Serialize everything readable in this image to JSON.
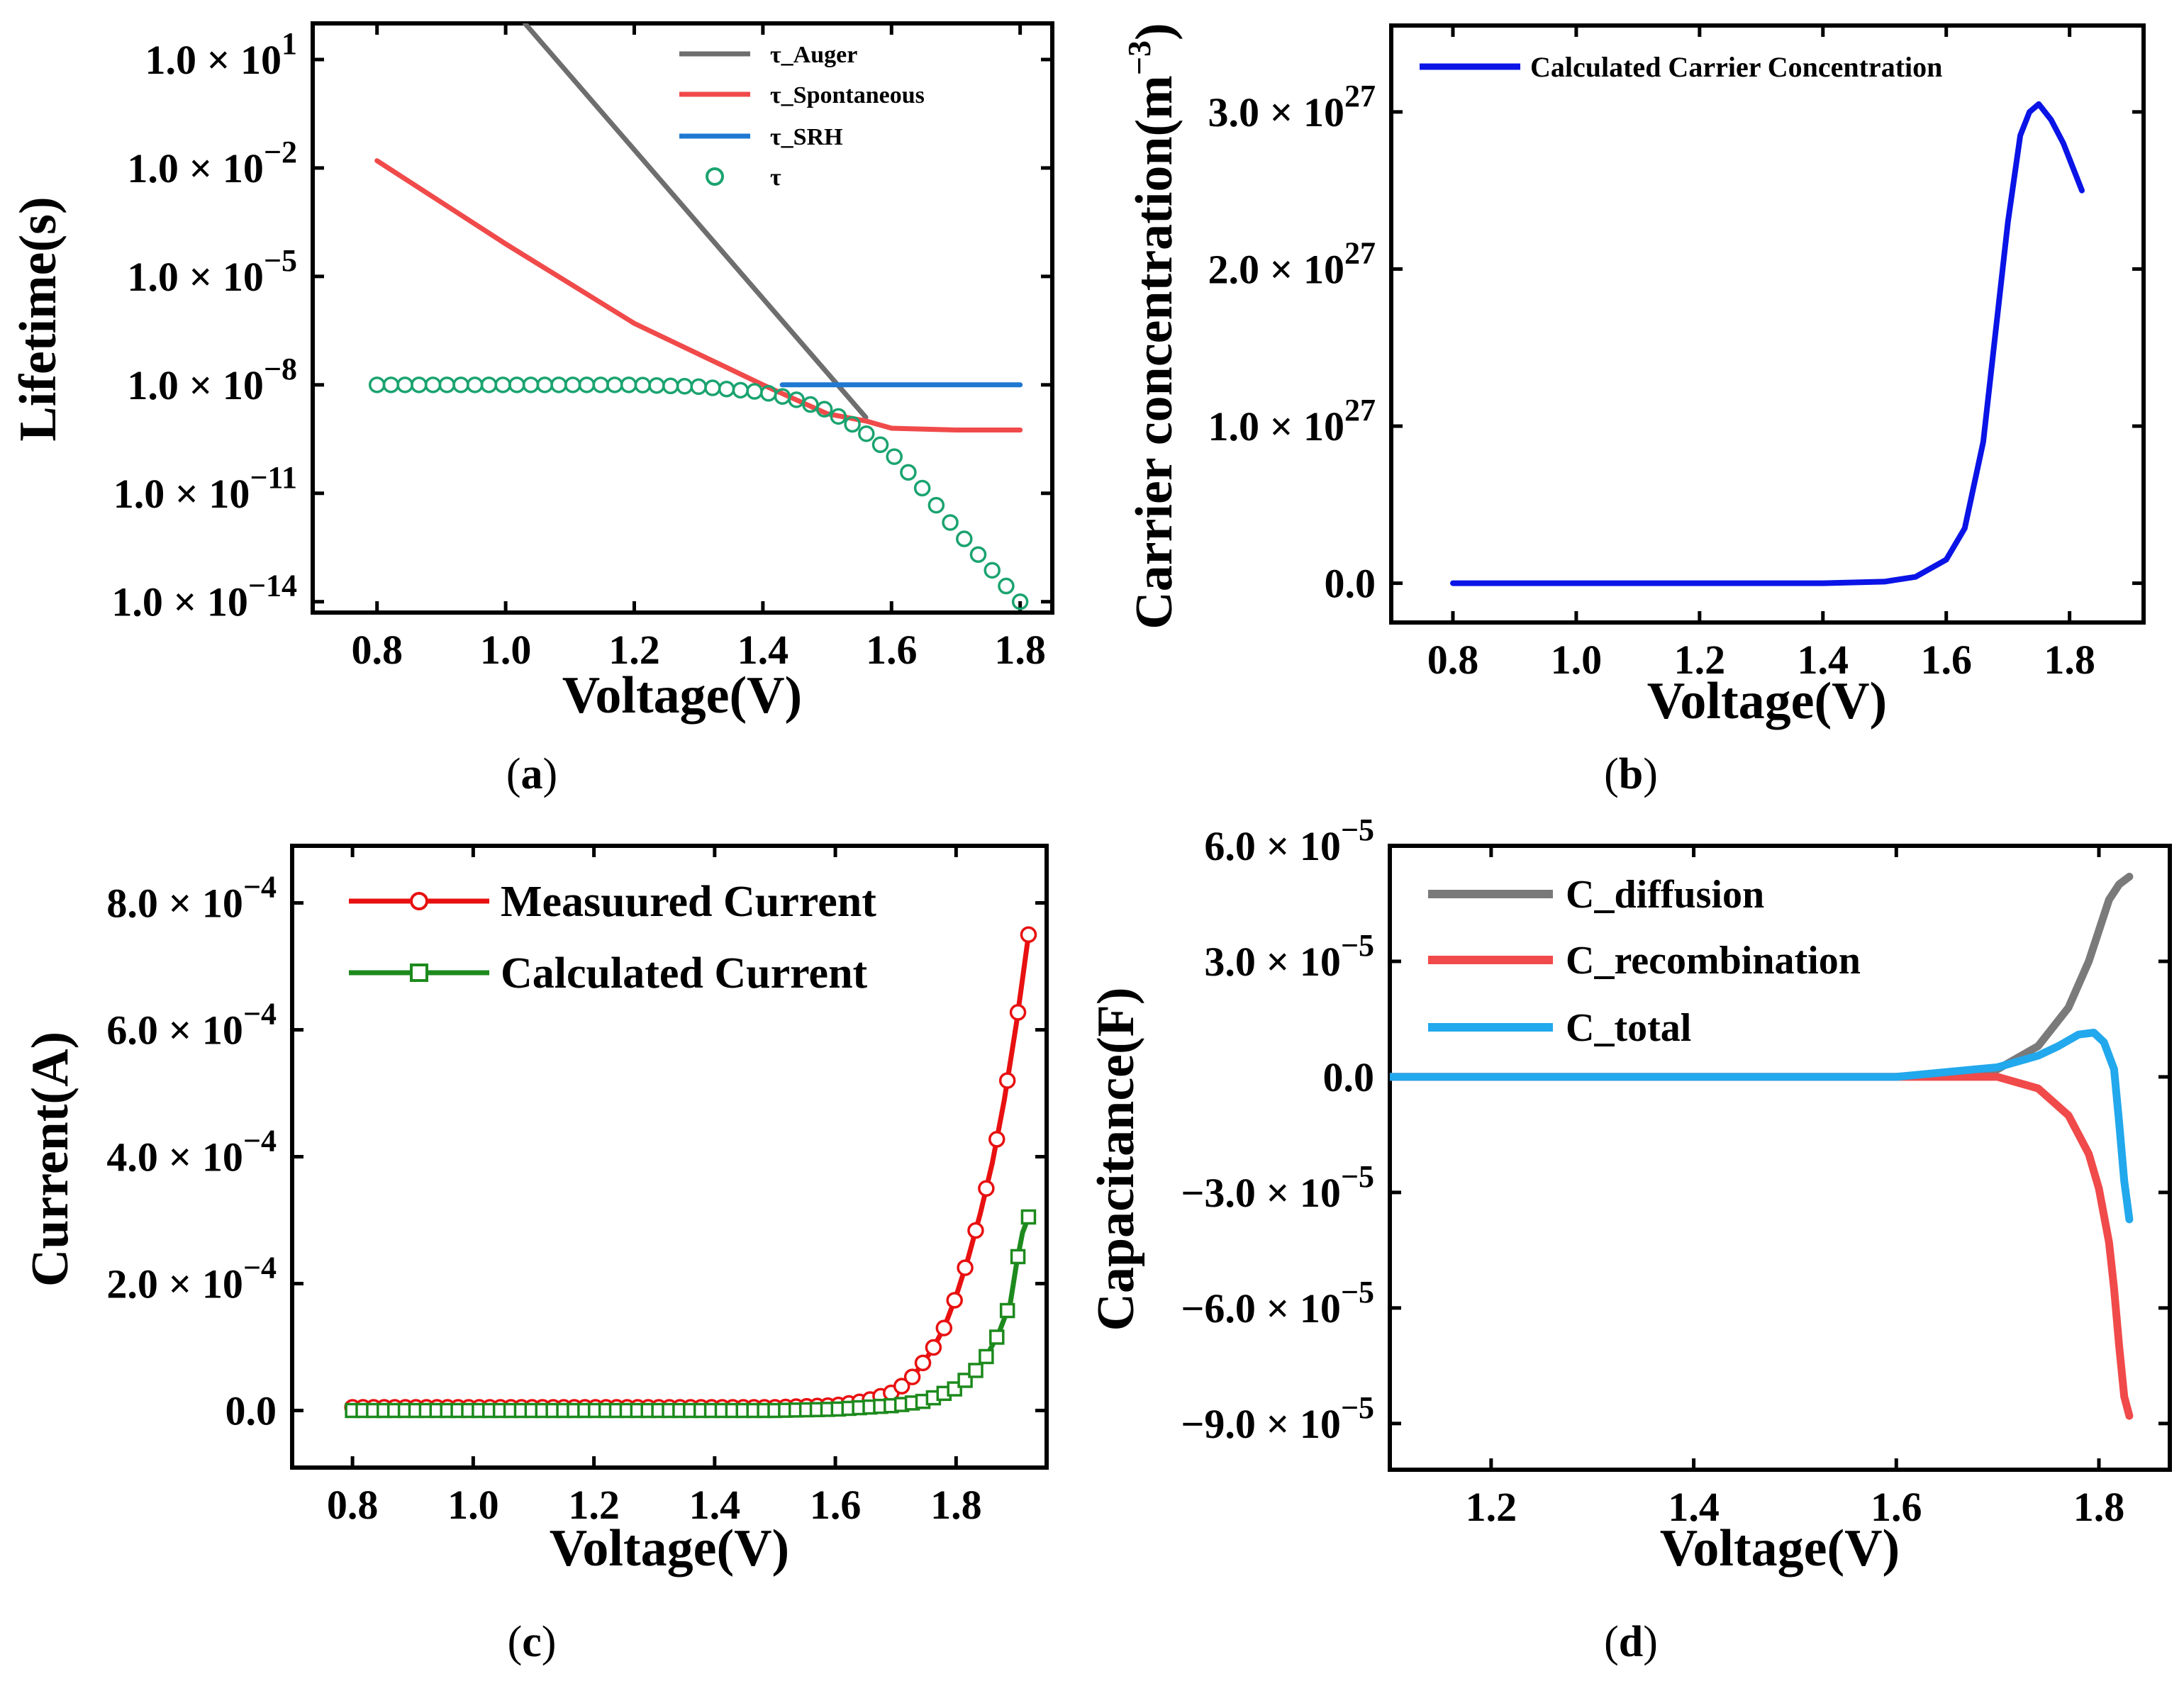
{
  "chart_data": [
    {
      "id": "a",
      "type": "line",
      "caption_letter": "a",
      "xlabel": "Voltage(V)",
      "ylabel": "Lifetime(s)",
      "xlim": [
        0.7,
        1.85
      ],
      "y_scale": "log",
      "ylim_log10": [
        -14.3,
        2.0
      ],
      "x_ticks": [
        0.8,
        1.0,
        1.2,
        1.4,
        1.6,
        1.8
      ],
      "x_tick_labels": [
        "0.8",
        "1.0",
        "1.2",
        "1.4",
        "1.6",
        "1.8"
      ],
      "y_ticks_log10": [
        1,
        -2,
        -5,
        -8,
        -11,
        -14
      ],
      "y_tick_mantissa": "1.0 × 10",
      "y_tick_exponents": [
        "1",
        "−2",
        "−5",
        "−8",
        "−11",
        "−14"
      ],
      "legend_position": "top-right",
      "grid": false,
      "series": [
        {
          "name": "τ_Auger",
          "color": "#6e6e6e",
          "style": "line",
          "x": [
            1.03,
            1.56
          ],
          "y_log10": [
            2.0,
            -8.9
          ]
        },
        {
          "name": "τ_Spontaneous",
          "color": "#f04a4a",
          "style": "line",
          "x": [
            0.8,
            1.0,
            1.2,
            1.4,
            1.5,
            1.56,
            1.6,
            1.7,
            1.8
          ],
          "y_log10": [
            -1.8,
            -4.1,
            -6.3,
            -8.0,
            -8.8,
            -9.0,
            -9.2,
            -9.25,
            -9.25
          ]
        },
        {
          "name": "τ_SRH",
          "color": "#1f78d1",
          "style": "line",
          "x": [
            1.43,
            1.8
          ],
          "y_log10": [
            -8.0,
            -8.0
          ]
        },
        {
          "name": "τ",
          "color": "#1aa36f",
          "style": "markers",
          "x": [
            0.8,
            1.0,
            1.2,
            1.3,
            1.4,
            1.45,
            1.5,
            1.55,
            1.6,
            1.65,
            1.7,
            1.75,
            1.8
          ],
          "y_log10": [
            -8.0,
            -8.0,
            -8.0,
            -8.05,
            -8.2,
            -8.4,
            -8.7,
            -9.2,
            -9.9,
            -10.9,
            -12.0,
            -13.0,
            -14.0
          ]
        }
      ]
    },
    {
      "id": "b",
      "type": "line",
      "caption_letter": "b",
      "xlabel": "Voltage(V)",
      "ylabel": "Carrier concentration(m",
      "ylabel_sup": "−3",
      "ylabel_tail": ")",
      "xlim": [
        0.7,
        1.92
      ],
      "ylim": [
        -0.25,
        3.55
      ],
      "x_ticks": [
        0.8,
        1.0,
        1.2,
        1.4,
        1.6,
        1.8
      ],
      "x_tick_labels": [
        "0.8",
        "1.0",
        "1.2",
        "1.4",
        "1.6",
        "1.8"
      ],
      "y_ticks": [
        0,
        1,
        2,
        3
      ],
      "y_tick_labels": [
        "0.0",
        "1.0 × 10",
        "2.0 × 10",
        "3.0 × 10"
      ],
      "y_tick_sup": [
        "",
        "27",
        "27",
        "27"
      ],
      "legend_position": "top-right",
      "grid": false,
      "series": [
        {
          "name": "Calculated Carrier Concentration",
          "color": "#0a14e6",
          "x": [
            0.8,
            1.4,
            1.5,
            1.55,
            1.6,
            1.63,
            1.66,
            1.68,
            1.7,
            1.72,
            1.735,
            1.75,
            1.77,
            1.79,
            1.81,
            1.82
          ],
          "y": [
            0.0,
            0.0,
            0.01,
            0.04,
            0.15,
            0.35,
            0.9,
            1.6,
            2.3,
            2.85,
            3.0,
            3.05,
            2.95,
            2.8,
            2.6,
            2.5
          ]
        }
      ]
    },
    {
      "id": "c",
      "type": "line",
      "caption_letter": "c",
      "xlabel": "Voltage(V)",
      "ylabel": "Current(A)",
      "xlim": [
        0.7,
        1.95
      ],
      "ylim": [
        -0.9,
        8.9
      ],
      "x_ticks": [
        0.8,
        1.0,
        1.2,
        1.4,
        1.6,
        1.8
      ],
      "x_tick_labels": [
        "0.8",
        "1.0",
        "1.2",
        "1.4",
        "1.6",
        "1.8"
      ],
      "y_ticks": [
        0,
        2,
        4,
        6,
        8
      ],
      "y_tick_labels": [
        "0.0",
        "2.0 × 10",
        "4.0 × 10",
        "6.0 × 10",
        "8.0 × 10"
      ],
      "y_tick_sup": [
        "",
        "−4",
        "−4",
        "−4",
        "−4"
      ],
      "y_unit": "×10^-4 A",
      "legend_position": "top-left",
      "grid": false,
      "series": [
        {
          "name": "Measuured Current",
          "color": "#e81010",
          "marker": "circle",
          "x": [
            0.8,
            1.2,
            1.5,
            1.6,
            1.65,
            1.7,
            1.73,
            1.76,
            1.78,
            1.8,
            1.82,
            1.84,
            1.86,
            1.88,
            1.9,
            1.91,
            1.92
          ],
          "y": [
            0.05,
            0.05,
            0.05,
            0.08,
            0.15,
            0.3,
            0.55,
            0.95,
            1.3,
            1.8,
            2.4,
            3.1,
            3.9,
            4.9,
            6.1,
            6.8,
            7.5
          ]
        },
        {
          "name": "Calculated Current",
          "color": "#1d8a1d",
          "marker": "square",
          "x": [
            0.8,
            1.2,
            1.5,
            1.6,
            1.7,
            1.75,
            1.8,
            1.83,
            1.85,
            1.87,
            1.89,
            1.9,
            1.91,
            1.92
          ],
          "y": [
            0.0,
            0.0,
            0.0,
            0.02,
            0.08,
            0.15,
            0.35,
            0.6,
            0.85,
            1.2,
            1.7,
            2.3,
            2.8,
            3.05
          ]
        }
      ]
    },
    {
      "id": "d",
      "type": "line",
      "caption_letter": "d",
      "xlabel": "Voltage(V)",
      "ylabel": "Capacitance(F)",
      "xlim": [
        1.1,
        1.87
      ],
      "ylim": [
        -10.2,
        6.0
      ],
      "x_ticks": [
        1.2,
        1.4,
        1.6,
        1.8
      ],
      "x_tick_labels": [
        "1.2",
        "1.4",
        "1.6",
        "1.8"
      ],
      "y_ticks": [
        6,
        3,
        0,
        -3,
        -6,
        -9
      ],
      "y_tick_labels": [
        "6.0 × 10",
        "3.0 × 10",
        "0.0",
        "−3.0 × 10",
        "−6.0 × 10",
        "−9.0 × 10"
      ],
      "y_tick_sup": [
        "−5",
        "−5",
        "",
        "−5",
        "−5",
        "−5"
      ],
      "y_unit": "×10^-5 F",
      "legend_position": "top-left",
      "grid": false,
      "series": [
        {
          "name": "C_diffusion",
          "color": "#7a7a7a",
          "x": [
            1.1,
            1.6,
            1.7,
            1.74,
            1.77,
            1.79,
            1.81,
            1.82,
            1.83
          ],
          "y": [
            0.0,
            0.0,
            0.2,
            0.8,
            1.8,
            3.0,
            4.6,
            5.0,
            5.2
          ]
        },
        {
          "name": "C_recombination",
          "color": "#f04a4a",
          "x": [
            1.1,
            1.6,
            1.7,
            1.74,
            1.77,
            1.79,
            1.8,
            1.81,
            1.815,
            1.82,
            1.825,
            1.83
          ],
          "y": [
            0.0,
            0.0,
            0.0,
            -0.3,
            -1.0,
            -2.0,
            -2.9,
            -4.3,
            -5.5,
            -7.0,
            -8.3,
            -8.8
          ]
        },
        {
          "name": "C_total",
          "color": "#22a8ec",
          "x": [
            1.1,
            1.6,
            1.7,
            1.74,
            1.76,
            1.78,
            1.795,
            1.805,
            1.815,
            1.82,
            1.825,
            1.83
          ],
          "y": [
            0.0,
            0.0,
            0.25,
            0.55,
            0.8,
            1.1,
            1.15,
            0.9,
            0.2,
            -1.2,
            -2.7,
            -3.7
          ]
        }
      ]
    }
  ]
}
